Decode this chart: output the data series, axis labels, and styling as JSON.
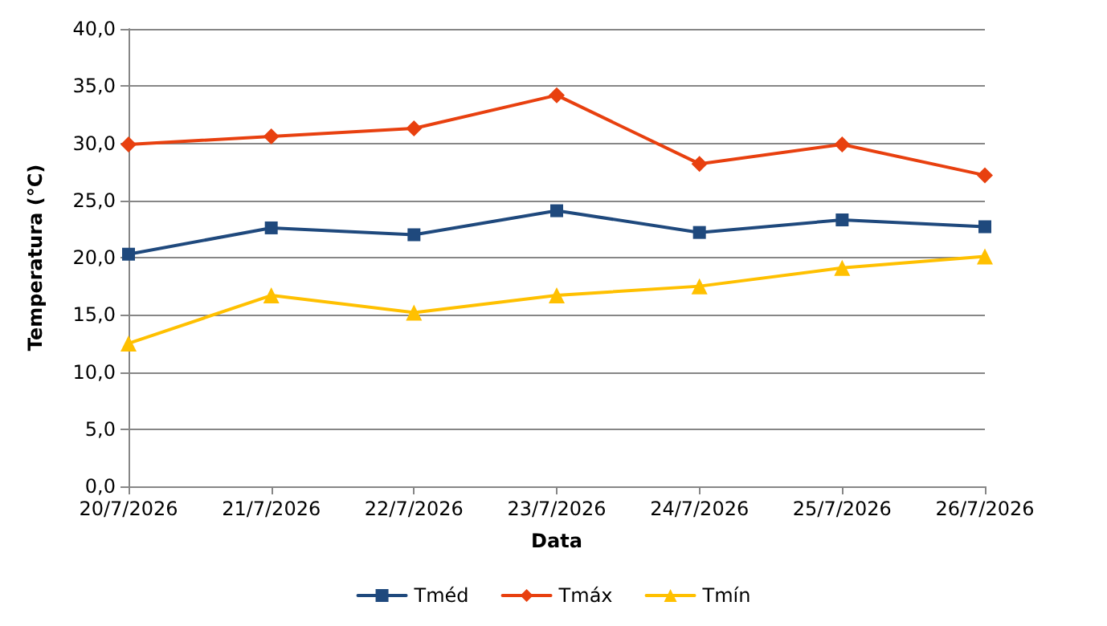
{
  "chart_data": {
    "type": "line",
    "xlabel": "Data",
    "ylabel": "Temperatura (°C)",
    "categories": [
      "20/7/2026",
      "21/7/2026",
      "22/7/2026",
      "23/7/2026",
      "24/7/2026",
      "25/7/2026",
      "26/7/2026"
    ],
    "series": [
      {
        "name": "Tméd",
        "color": "#1f497d",
        "marker": "square",
        "values": [
          20.3,
          22.6,
          22.0,
          24.1,
          22.2,
          23.3,
          22.7
        ]
      },
      {
        "name": "Tmáx",
        "color": "#e8400f",
        "marker": "diamond",
        "values": [
          29.9,
          30.6,
          31.3,
          34.2,
          28.2,
          29.9,
          27.2
        ]
      },
      {
        "name": "Tmín",
        "color": "#ffc000",
        "marker": "triangle",
        "values": [
          12.5,
          16.7,
          15.2,
          16.7,
          17.5,
          19.1,
          20.1
        ]
      }
    ],
    "ylim": [
      0,
      40
    ],
    "yticks": [
      {
        "value": 0,
        "label": "0,0"
      },
      {
        "value": 5,
        "label": "5,0"
      },
      {
        "value": 10,
        "label": "10,0"
      },
      {
        "value": 15,
        "label": "15,0"
      },
      {
        "value": 20,
        "label": "20,0"
      },
      {
        "value": 25,
        "label": "25,0"
      },
      {
        "value": 30,
        "label": "30,0"
      },
      {
        "value": 35,
        "label": "35,0"
      },
      {
        "value": 40,
        "label": "40,0"
      }
    ],
    "grid": "y",
    "legend": "bottom",
    "line_style": "solid"
  }
}
